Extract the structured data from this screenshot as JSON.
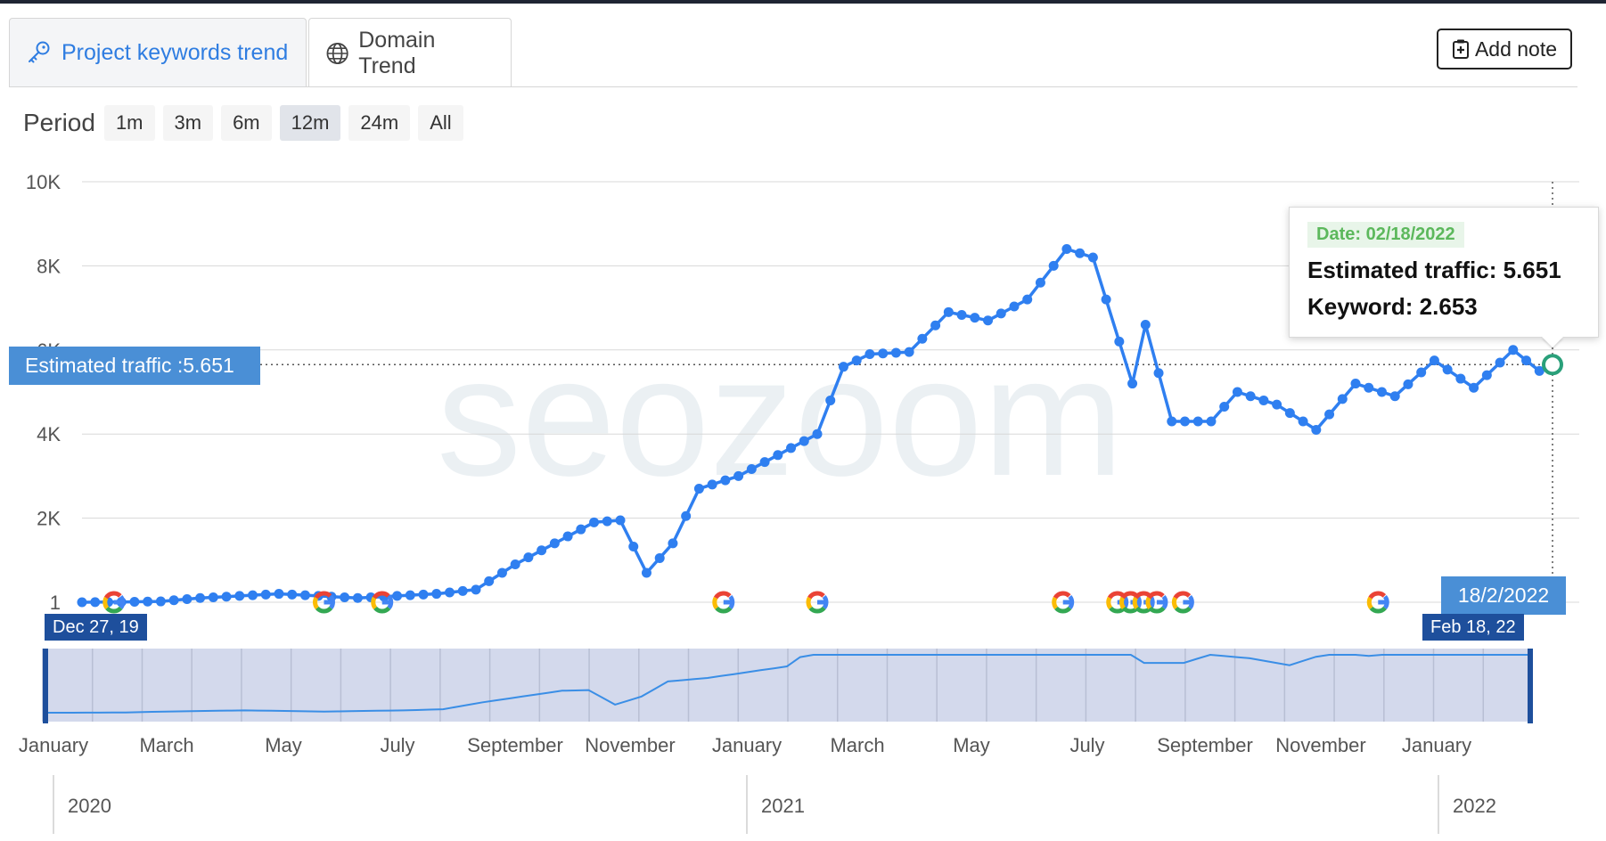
{
  "tabs": [
    {
      "label": "Project keywords trend",
      "icon": "key-icon",
      "active": false
    },
    {
      "label": "Domain Trend",
      "icon": "globe-icon",
      "active": true
    }
  ],
  "add_note": {
    "label": "Add note",
    "icon": "clipboard-plus-icon"
  },
  "period": {
    "label": "Period",
    "options": [
      "1m",
      "3m",
      "6m",
      "12m",
      "24m",
      "All"
    ],
    "selected": "12m"
  },
  "watermark": "seozoom",
  "tooltip": {
    "date": "Date: 02/18/2022",
    "traffic": "Estimated traffic: 5.651",
    "keyword": "Keyword: 2.653"
  },
  "y_flag": "Estimated traffic :5.651",
  "x_flag": "18/2/2022",
  "navigator": {
    "start_flag": "Dec 27, 19",
    "end_flag": "Feb 18, 22",
    "months": [
      "January",
      "March",
      "May",
      "July",
      "September",
      "November",
      "January",
      "March",
      "May",
      "July",
      "September",
      "November",
      "January"
    ],
    "years": [
      "2020",
      "2021",
      "2022"
    ]
  },
  "colors": {
    "line": "#2f7ff0",
    "flag": "#4a8fd6",
    "navigator": "#d3d9ec",
    "handle": "#1e4f9c"
  },
  "chart_data": {
    "type": "line",
    "yticks": [
      "1",
      "2K",
      "4K",
      "6K",
      "8K",
      "10K"
    ],
    "ylim": [
      0,
      10000
    ],
    "xlim": [
      "2019-12-27",
      "2022-02-18"
    ],
    "series": [
      {
        "name": "Estimated traffic",
        "values": [
          [
            "2019-12-27",
            0
          ],
          [
            "2020-01-17",
            5
          ],
          [
            "2020-02-07",
            20
          ],
          [
            "2020-02-28",
            100
          ],
          [
            "2020-03-20",
            150
          ],
          [
            "2020-04-10",
            200
          ],
          [
            "2020-05-01",
            150
          ],
          [
            "2020-05-22",
            100
          ],
          [
            "2020-06-12",
            150
          ],
          [
            "2020-07-03",
            200
          ],
          [
            "2020-07-24",
            300
          ],
          [
            "2020-08-14",
            900
          ],
          [
            "2020-09-04",
            1400
          ],
          [
            "2020-09-25",
            1900
          ],
          [
            "2020-10-09",
            1950
          ],
          [
            "2020-10-23",
            700
          ],
          [
            "2020-11-06",
            1400
          ],
          [
            "2020-11-20",
            2700
          ],
          [
            "2020-12-11",
            3000
          ],
          [
            "2021-01-01",
            3500
          ],
          [
            "2021-01-22",
            4000
          ],
          [
            "2021-02-05",
            5600
          ],
          [
            "2021-02-19",
            5900
          ],
          [
            "2021-03-12",
            5950
          ],
          [
            "2021-04-02",
            6900
          ],
          [
            "2021-04-23",
            6700
          ],
          [
            "2021-05-14",
            7200
          ],
          [
            "2021-06-04",
            8400
          ],
          [
            "2021-06-18",
            8200
          ],
          [
            "2021-07-02",
            6200
          ],
          [
            "2021-07-09",
            5200
          ],
          [
            "2021-07-16",
            6600
          ],
          [
            "2021-07-30",
            4300
          ],
          [
            "2021-08-20",
            4300
          ],
          [
            "2021-09-03",
            5000
          ],
          [
            "2021-09-24",
            4700
          ],
          [
            "2021-10-15",
            4100
          ],
          [
            "2021-11-05",
            5200
          ],
          [
            "2021-11-26",
            4900
          ],
          [
            "2021-12-17",
            5750
          ],
          [
            "2022-01-07",
            5100
          ],
          [
            "2022-01-28",
            6000
          ],
          [
            "2022-02-11",
            5500
          ],
          [
            "2022-02-18",
            5651
          ]
        ]
      }
    ],
    "google_update_dates": [
      "2020-01-13",
      "2020-05-04",
      "2020-06-04",
      "2020-12-03",
      "2021-01-22",
      "2021-06-02",
      "2021-07-01",
      "2021-07-08",
      "2021-07-15",
      "2021-07-22",
      "2021-08-05",
      "2021-11-17"
    ],
    "crosshair": {
      "date": "2022-02-18",
      "value": 5651
    }
  }
}
